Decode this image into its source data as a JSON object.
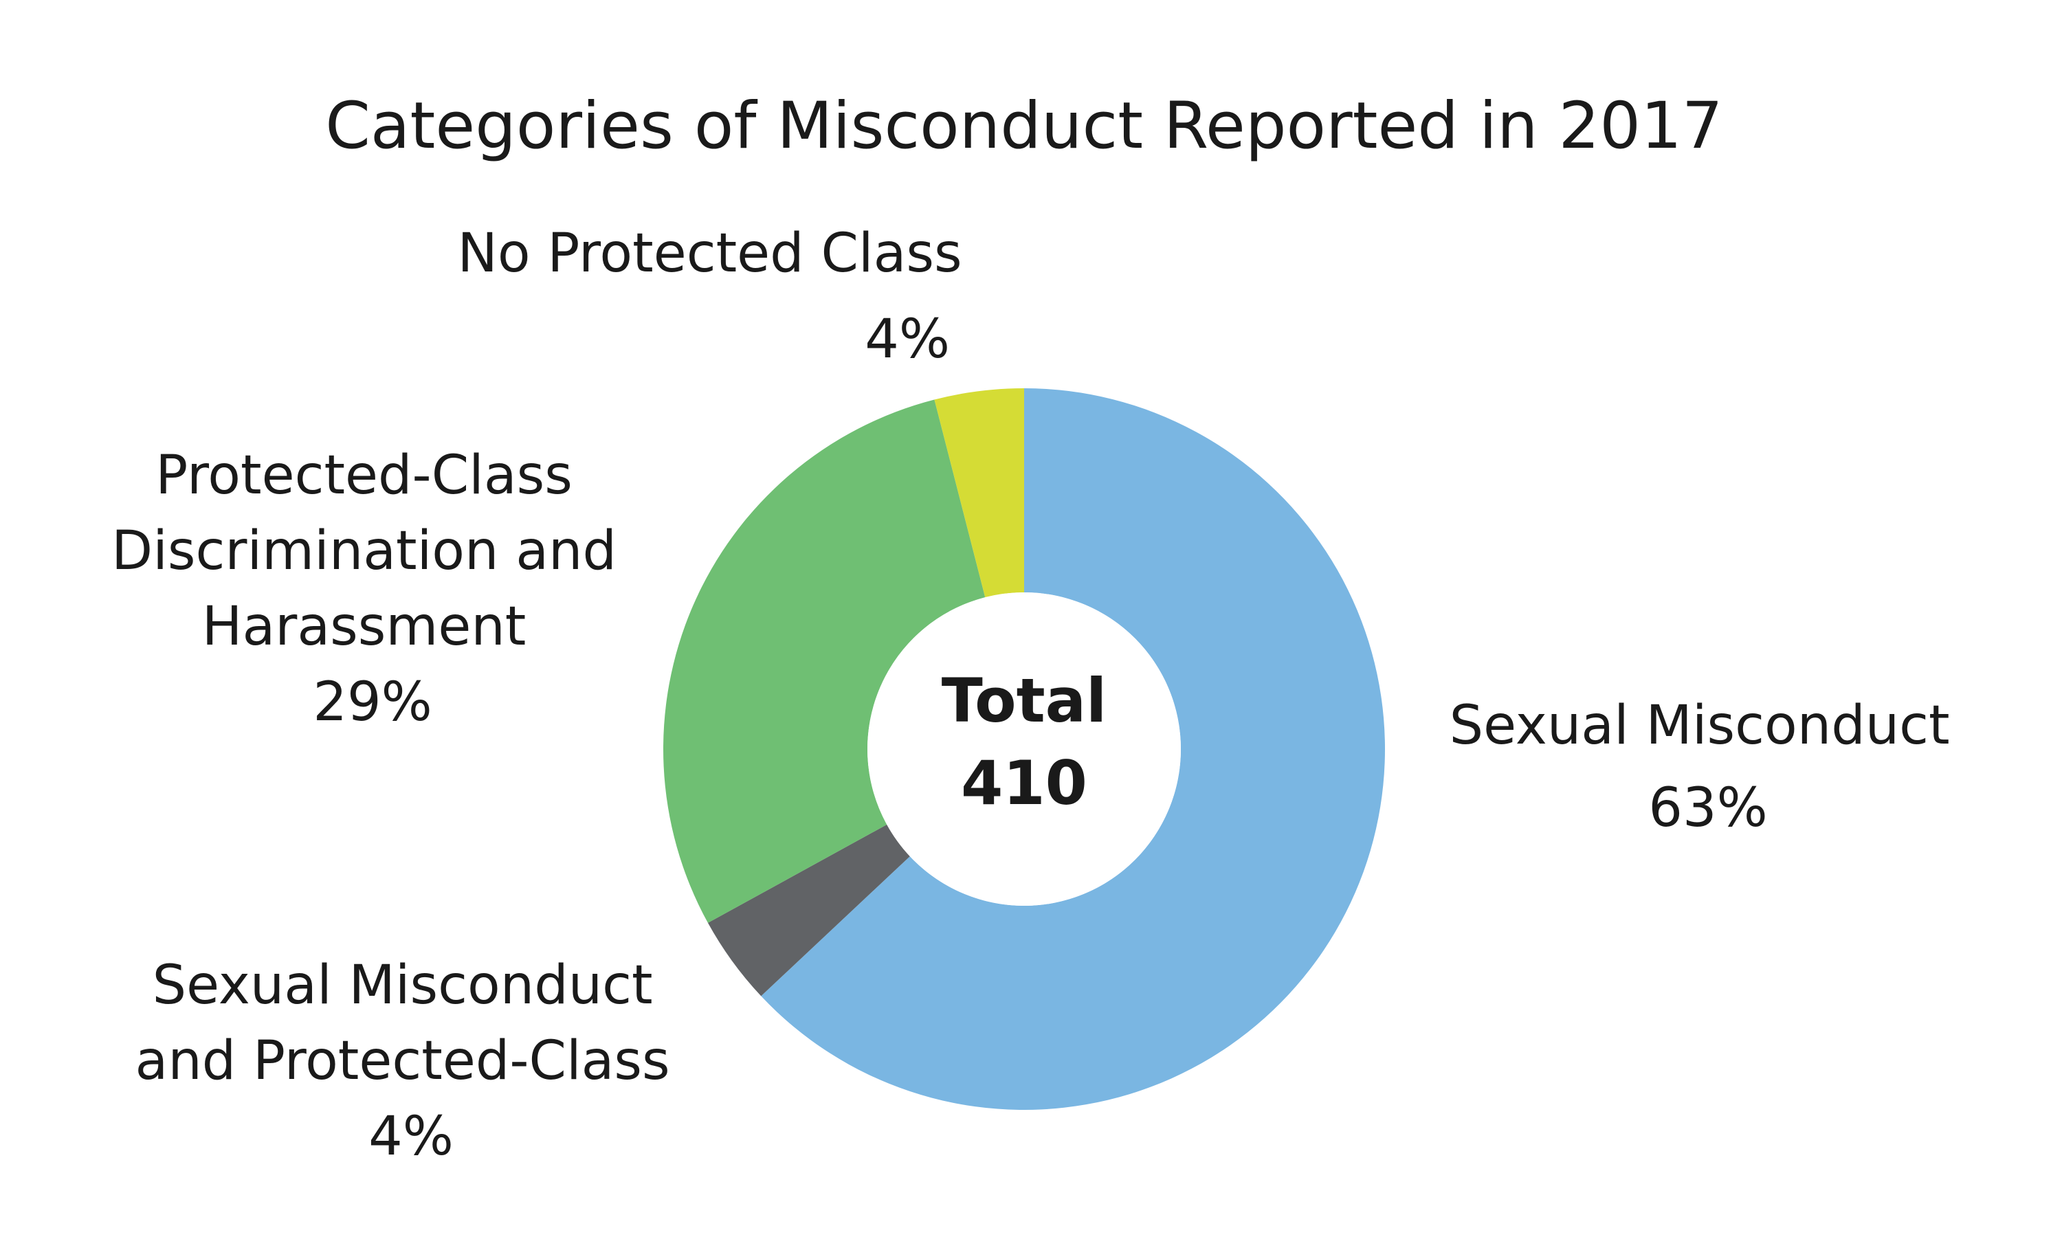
{
  "chart_data": {
    "type": "pie",
    "variant": "donut",
    "title": "Categories of Misconduct Reported in 2017",
    "center_label": "Total",
    "center_value": "410",
    "slices": [
      {
        "label": "Sexual Misconduct",
        "percent_label": "63%",
        "value": 63,
        "color": "#7ab6e2"
      },
      {
        "label": "Sexual Misconduct and Protected-Class",
        "percent_label": "4%",
        "value": 4,
        "color": "#616366"
      },
      {
        "label": "Protected-Class Discrimination and Harassment",
        "percent_label": "29%",
        "value": 29,
        "color": "#6fbf73"
      },
      {
        "label": "No Protected Class",
        "percent_label": "4%",
        "value": 4,
        "color": "#d5dc35"
      }
    ]
  }
}
